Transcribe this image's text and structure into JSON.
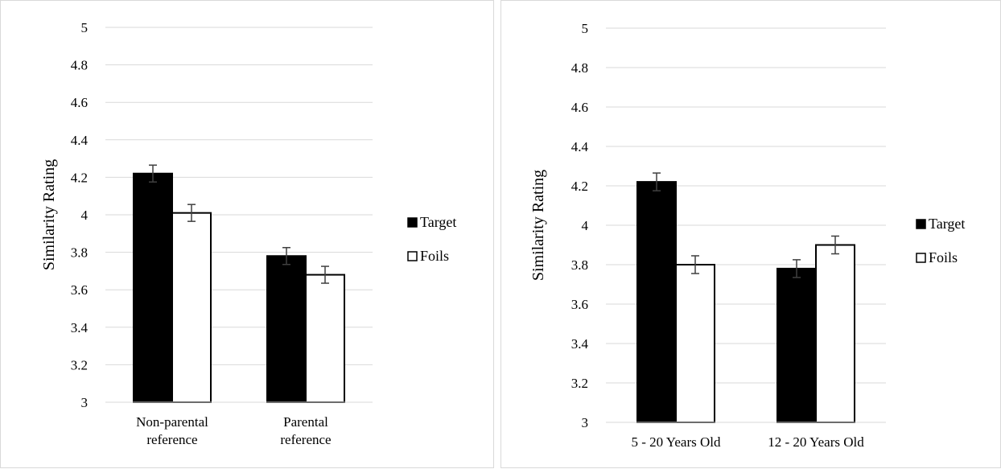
{
  "chart_data": [
    {
      "type": "bar",
      "title": "",
      "xlabel": "",
      "ylabel": "Similarity Rating",
      "ylim": [
        3,
        5
      ],
      "yticks": [
        "3",
        "3.2",
        "3.4",
        "3.6",
        "3.8",
        "4",
        "4.2",
        "4.4",
        "4.6",
        "4.8",
        "5"
      ],
      "grid": true,
      "legend_position": "right",
      "categories": [
        [
          "Non-parental",
          "reference"
        ],
        [
          "Parental",
          "reference"
        ]
      ],
      "series": [
        {
          "name": "Target",
          "values": [
            4.22,
            3.78
          ],
          "errors": [
            0.045,
            0.045
          ],
          "color": "#000000"
        },
        {
          "name": "Foils",
          "values": [
            4.01,
            3.68
          ],
          "errors": [
            0.045,
            0.045
          ],
          "color": "#ffffff"
        }
      ]
    },
    {
      "type": "bar",
      "title": "",
      "xlabel": "",
      "ylabel": "Similarity Rating",
      "ylim": [
        3,
        5
      ],
      "yticks": [
        "3",
        "3.2",
        "3.4",
        "3.6",
        "3.8",
        "4",
        "4.2",
        "4.4",
        "4.6",
        "4.8",
        "5"
      ],
      "grid": true,
      "legend_position": "right",
      "categories": [
        [
          "5 - 20 Years Old"
        ],
        [
          "12 - 20 Years Old"
        ]
      ],
      "series": [
        {
          "name": "Target",
          "values": [
            4.22,
            3.78
          ],
          "errors": [
            0.045,
            0.045
          ],
          "color": "#000000"
        },
        {
          "name": "Foils",
          "values": [
            3.8,
            3.9
          ],
          "errors": [
            0.045,
            0.045
          ],
          "color": "#ffffff"
        }
      ]
    }
  ]
}
